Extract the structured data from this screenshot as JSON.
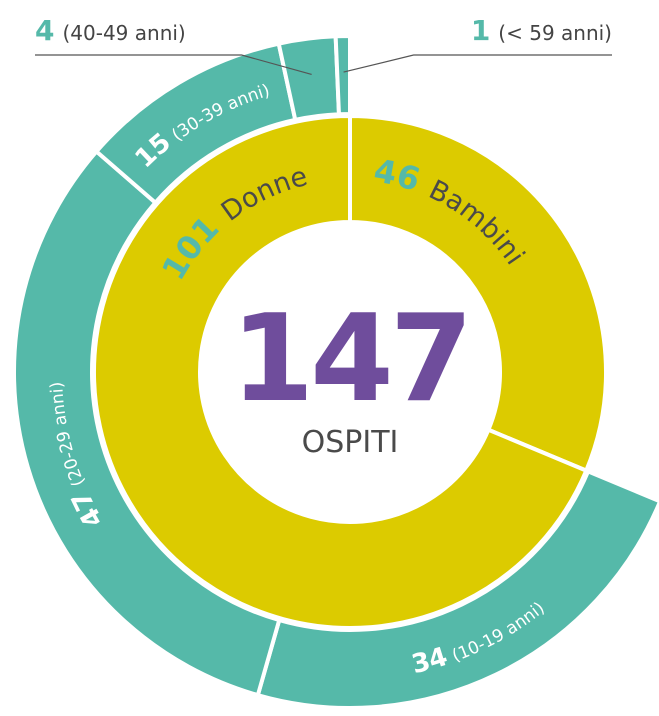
{
  "chart_data": {
    "type": "sunburst",
    "total": 147,
    "total_label": "OSPITI",
    "inner": {
      "categories": [
        "Bambini",
        "Donne"
      ],
      "values": [
        46,
        101
      ],
      "color": "#dccb00"
    },
    "outer": {
      "parent": "Donne",
      "categories": [
        "(10-19 anni)",
        "(20-29 anni)",
        "(30-39 anni)",
        "(40-49 anni)",
        "(< 59 anni)"
      ],
      "values": [
        34,
        47,
        15,
        4,
        1
      ],
      "color": "#55b9a9"
    },
    "label_color": "#55b9a9",
    "total_color": "#6f4d9c"
  }
}
